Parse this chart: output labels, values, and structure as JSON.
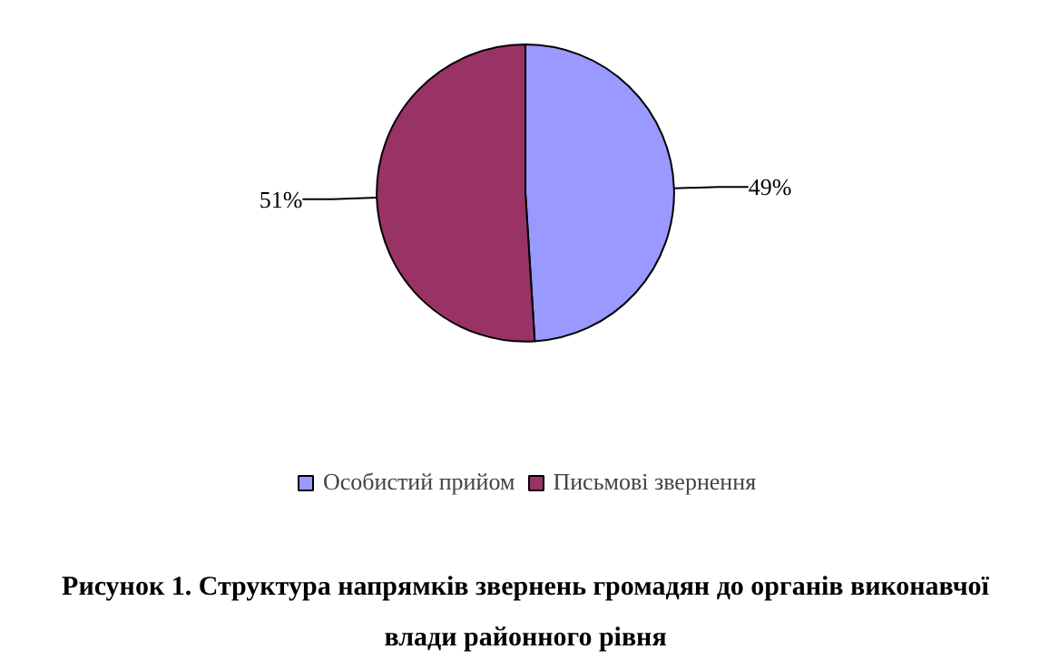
{
  "chart_data": {
    "type": "pie",
    "title": "Рисунок 1. Структура напрямків звернень громадян до органів виконавчої влади районного рівня",
    "categories": [
      "Особистий прийом",
      "Письмові звернення"
    ],
    "values": [
      49,
      51
    ],
    "value_labels": [
      "49%",
      "51%"
    ],
    "colors": [
      "#9999ff",
      "#993366"
    ],
    "legend": "bottom"
  }
}
